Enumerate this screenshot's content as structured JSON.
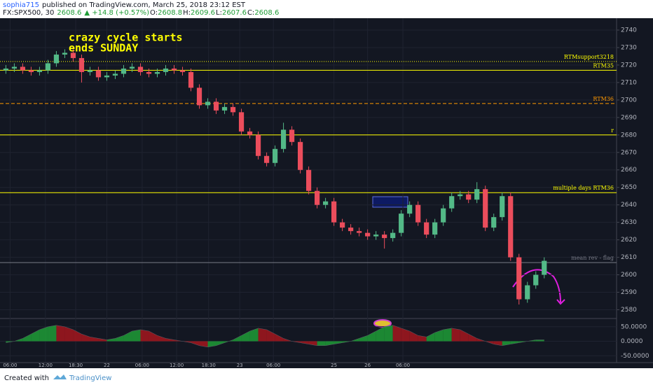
{
  "header": {
    "author": "sophia715",
    "published": "published on TradingView.com, March 25, 2018 23:12 EST",
    "symbol": "FX:SPX500, 30",
    "last": "2608.6",
    "change": "▲ +14.8 (+0.57%)",
    "ohlc": [
      {
        "label": "O:",
        "value": "2608.8"
      },
      {
        "label": "H:",
        "value": "2609.6"
      },
      {
        "label": "L:",
        "value": "2607.6"
      },
      {
        "label": "C:",
        "value": "2608.6"
      }
    ]
  },
  "footer": {
    "created": "Created with",
    "brand": "TradingView"
  },
  "chart_data": {
    "type": "candlestick",
    "up_color": "#53b987",
    "down_color": "#eb4d5c",
    "ylim": [
      2575,
      2746
    ],
    "yticks": [
      2580,
      2590,
      2600,
      2610,
      2620,
      2630,
      2640,
      2650,
      2660,
      2670,
      2680,
      2690,
      2700,
      2710,
      2720,
      2730,
      2740
    ],
    "xlim": [
      -0.7,
      72.6
    ],
    "xticks": [
      {
        "value": 0.5,
        "label": "06:00"
      },
      {
        "value": 4.7,
        "label": "12:00"
      },
      {
        "value": 8.3,
        "label": "18:30"
      },
      {
        "value": 12,
        "label": "22"
      },
      {
        "value": 16.2,
        "label": "06:00"
      },
      {
        "value": 20.3,
        "label": "12:00"
      },
      {
        "value": 24.1,
        "label": "18:30"
      },
      {
        "value": 27.8,
        "label": "23"
      },
      {
        "value": 31.8,
        "label": "06:00"
      },
      {
        "value": 39,
        "label": "25"
      },
      {
        "value": 43,
        "label": "26"
      },
      {
        "value": 47.2,
        "label": "06:00"
      }
    ],
    "grid": true,
    "open": [
      2717,
      2718,
      2719,
      2717,
      2716,
      2717,
      2721,
      2726,
      2727,
      2724,
      2716,
      2717,
      2713,
      2714,
      2715,
      2718,
      2719,
      2716,
      2715,
      2716,
      2718,
      2717,
      2716,
      2707,
      2697,
      2699,
      2694,
      2696,
      2693,
      2682,
      2680,
      2668,
      2664,
      2672,
      2683,
      2676,
      2660,
      2648,
      2640,
      2642,
      2630,
      2627,
      2625,
      2624,
      2622,
      2623,
      2621,
      2624,
      2635,
      2640,
      2630,
      2623,
      2630,
      2638,
      2645,
      2646,
      2643,
      2649,
      2627,
      2633,
      2645,
      2610,
      2586,
      2594,
      2600
    ],
    "high": [
      2720,
      2721,
      2721,
      2719,
      2719,
      2723,
      2728,
      2729,
      2729,
      2726,
      2719,
      2719,
      2716,
      2717,
      2720,
      2721,
      2721,
      2718,
      2718,
      2720,
      2720,
      2719,
      2718,
      2709,
      2701,
      2701,
      2698,
      2698,
      2695,
      2684,
      2682,
      2670,
      2674,
      2687,
      2685,
      2678,
      2662,
      2650,
      2644,
      2644,
      2632,
      2629,
      2627,
      2626,
      2625,
      2625,
      2626,
      2637,
      2642,
      2642,
      2632,
      2632,
      2640,
      2647,
      2648,
      2648,
      2653,
      2651,
      2635,
      2647,
      2647,
      2612,
      2596,
      2602,
      2610
    ],
    "low": [
      2715,
      2716,
      2715,
      2714,
      2714,
      2715,
      2719,
      2724,
      2722,
      2710,
      2714,
      2711,
      2711,
      2712,
      2713,
      2716,
      2714,
      2713,
      2713,
      2714,
      2715,
      2714,
      2705,
      2695,
      2695,
      2692,
      2692,
      2691,
      2680,
      2678,
      2666,
      2662,
      2662,
      2670,
      2674,
      2658,
      2646,
      2638,
      2638,
      2628,
      2625,
      2623,
      2622,
      2620,
      2620,
      2615,
      2619,
      2622,
      2633,
      2628,
      2621,
      2621,
      2628,
      2636,
      2643,
      2641,
      2641,
      2625,
      2625,
      2631,
      2608,
      2583,
      2584,
      2592,
      2598
    ],
    "close": [
      2718,
      2719,
      2717,
      2716,
      2717,
      2721,
      2726,
      2727,
      2724,
      2716,
      2717,
      2713,
      2714,
      2715,
      2718,
      2719,
      2716,
      2715,
      2716,
      2718,
      2717,
      2716,
      2707,
      2697,
      2699,
      2694,
      2696,
      2693,
      2682,
      2680,
      2668,
      2664,
      2672,
      2683,
      2676,
      2660,
      2648,
      2640,
      2642,
      2630,
      2627,
      2625,
      2624,
      2622,
      2623,
      2621,
      2624,
      2635,
      2640,
      2630,
      2623,
      2630,
      2638,
      2645,
      2646,
      2643,
      2649,
      2627,
      2633,
      2645,
      2610,
      2586,
      2594,
      2600,
      2608
    ],
    "levels": [
      {
        "name": "RTMsupport3218",
        "value": 2722,
        "color": "#ffff00",
        "style": "dotted"
      },
      {
        "name": "RTM35",
        "value": 2717,
        "color": "#ffff00",
        "style": "solid"
      },
      {
        "name": "RTM36",
        "value": 2698,
        "color": "#ff9800",
        "style": "dashed"
      },
      {
        "name": "r",
        "value": 2680,
        "color": "#ffff00",
        "style": "solid"
      },
      {
        "name": "multiple days RTM36",
        "value": 2647,
        "color": "#ffff00",
        "style": "solid"
      },
      {
        "name": "mean rev - flag",
        "value": 2607,
        "color": "#787b86",
        "style": "solid"
      }
    ],
    "annotation": [
      "crazy cycle starts",
      "ends SUNDAY"
    ],
    "annotation_color": "#ffff00",
    "oscillator": {
      "up_color": "#1e9c36",
      "down_color": "#a5161d",
      "ylim": [
        -71,
        76
      ],
      "yticks": [
        {
          "value": 50,
          "label": "50.0000"
        },
        {
          "value": 0,
          "label": "0.0000"
        },
        {
          "value": -50,
          "label": "-50.0000"
        }
      ],
      "values": [
        -5,
        0,
        10,
        25,
        40,
        50,
        55,
        50,
        40,
        25,
        15,
        10,
        5,
        10,
        20,
        35,
        40,
        35,
        20,
        10,
        5,
        0,
        -5,
        -15,
        -20,
        -15,
        -5,
        5,
        20,
        35,
        45,
        40,
        25,
        10,
        0,
        -5,
        -10,
        -15,
        -15,
        -10,
        -5,
        0,
        10,
        20,
        35,
        50,
        55,
        45,
        35,
        20,
        15,
        30,
        40,
        45,
        40,
        25,
        10,
        0,
        -10,
        -15,
        -10,
        -5,
        0,
        5,
        5
      ]
    }
  }
}
